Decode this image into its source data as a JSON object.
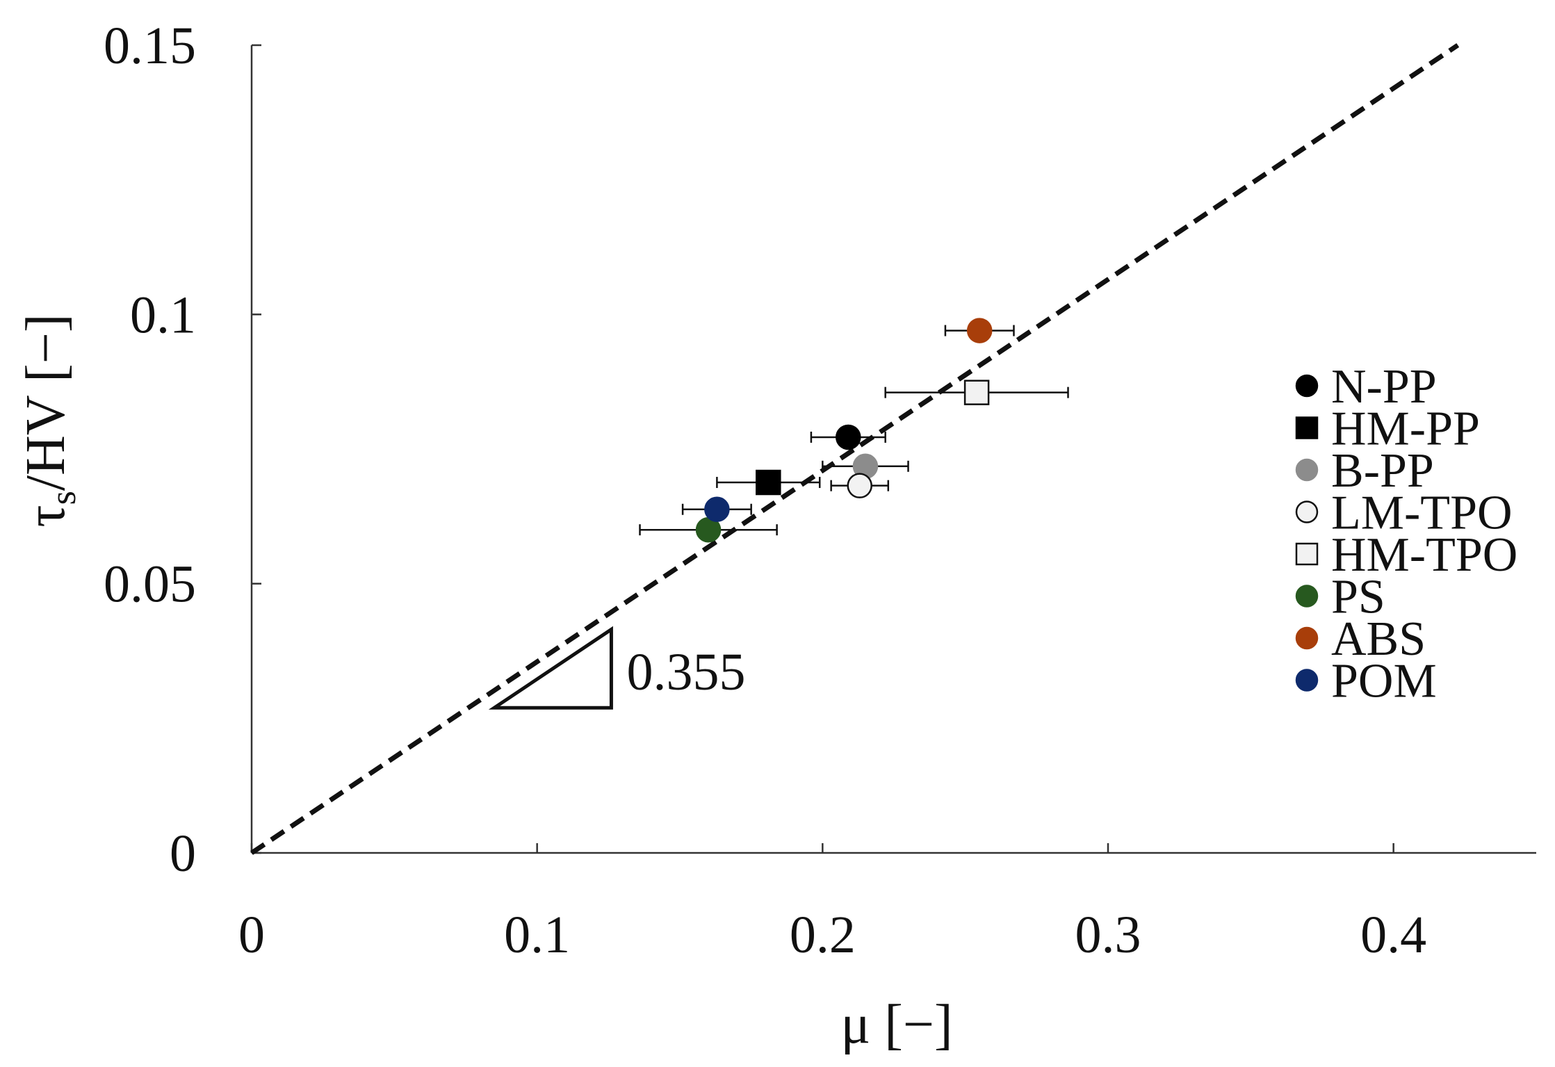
{
  "chart_data": {
    "type": "scatter",
    "xlabel": "μ [−]",
    "ylabel_main": "τ",
    "ylabel_sub": "s",
    "ylabel_rest": "/HV [−]",
    "xlim": [
      0,
      0.45
    ],
    "ylim": [
      0,
      0.15
    ],
    "x_ticks": [
      {
        "value": 0,
        "label": "0"
      },
      {
        "value": 0.1,
        "label": "0.1"
      },
      {
        "value": 0.2,
        "label": "0.2"
      },
      {
        "value": 0.3,
        "label": "0.3"
      },
      {
        "value": 0.4,
        "label": "0.4"
      }
    ],
    "y_ticks": [
      {
        "value": 0,
        "label": "0"
      },
      {
        "value": 0.05,
        "label": "0.05"
      },
      {
        "value": 0.1,
        "label": "0.1"
      },
      {
        "value": 0.15,
        "label": "0.15"
      }
    ],
    "grid": false,
    "legend_position": "right",
    "fit_line": {
      "slope": 0.355,
      "intercept": 0,
      "style": "dashed",
      "color": "#111111"
    },
    "slope_annotation": {
      "label": "0.355",
      "x1": 0.085,
      "x2": 0.126
    },
    "series": [
      {
        "name": "N-PP",
        "marker": "circle",
        "color": "#000000",
        "stroke": "#000000",
        "x": 0.209,
        "y": 0.0772,
        "xerr": 0.013
      },
      {
        "name": "HM-PP",
        "marker": "square",
        "color": "#000000",
        "stroke": "#000000",
        "x": 0.181,
        "y": 0.0688,
        "xerr": 0.018
      },
      {
        "name": "B-PP",
        "marker": "circle",
        "color": "#8c8c8c",
        "stroke": "#8c8c8c",
        "x": 0.215,
        "y": 0.0718,
        "xerr": 0.015
      },
      {
        "name": "LM-TPO",
        "marker": "circle",
        "color": "#f2f2f2",
        "stroke": "#111111",
        "x": 0.213,
        "y": 0.0682,
        "xerr": 0.01
      },
      {
        "name": "HM-TPO",
        "marker": "square",
        "color": "#f2f2f2",
        "stroke": "#111111",
        "x": 0.254,
        "y": 0.0855,
        "xerr": 0.032
      },
      {
        "name": "PS",
        "marker": "circle",
        "color": "#27591f",
        "stroke": "#27591f",
        "x": 0.16,
        "y": 0.06,
        "xerr": 0.024
      },
      {
        "name": "ABS",
        "marker": "circle",
        "color": "#a83e0a",
        "stroke": "#a83e0a",
        "x": 0.255,
        "y": 0.097,
        "xerr": 0.012
      },
      {
        "name": "POM",
        "marker": "circle",
        "color": "#0e2a6c",
        "stroke": "#0e2a6c",
        "x": 0.163,
        "y": 0.0638,
        "xerr": 0.012
      }
    ]
  }
}
